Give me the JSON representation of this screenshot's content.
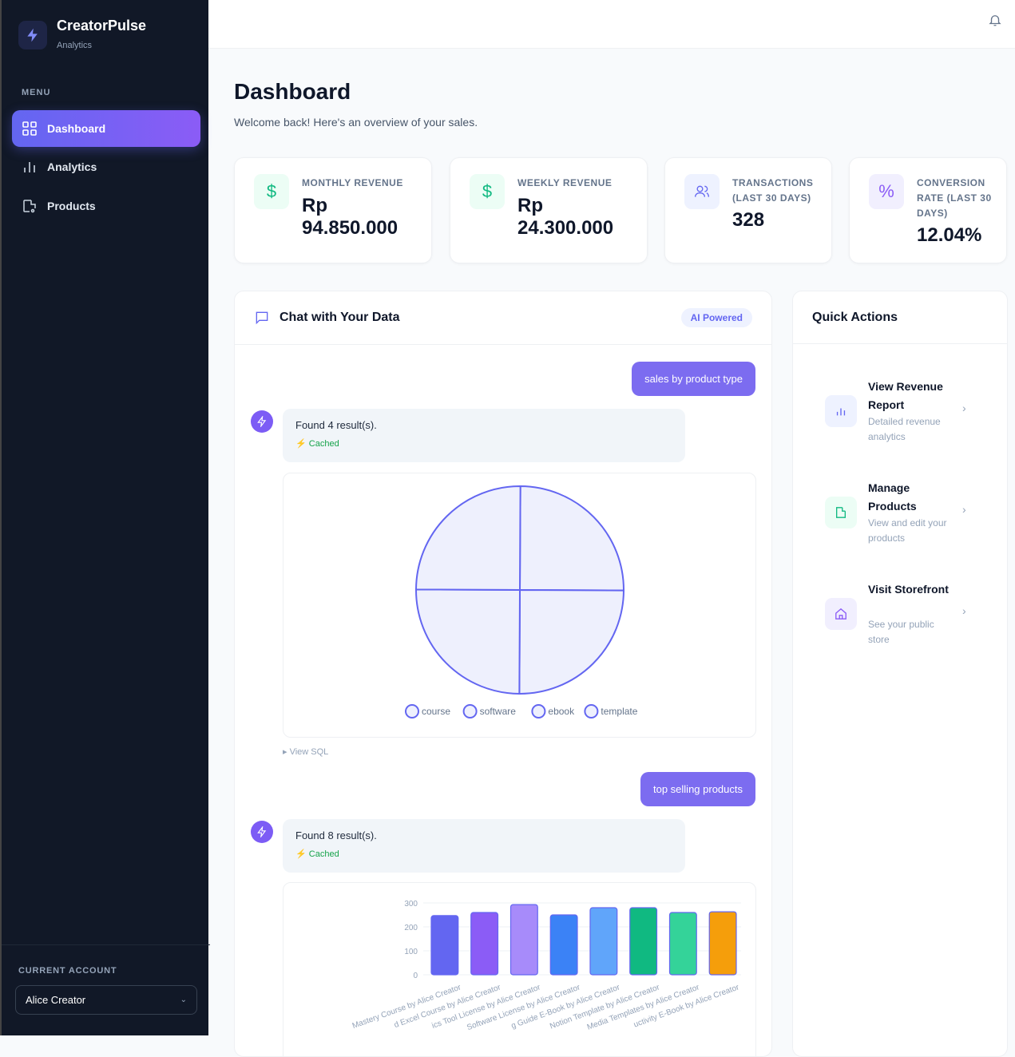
{
  "app": {
    "name": "CreatorPulse",
    "subtitle": "Analytics"
  },
  "sidebar": {
    "menu_label": "MENU",
    "items": [
      {
        "label": "Dashboard",
        "icon": "grid-icon",
        "active": true
      },
      {
        "label": "Analytics",
        "icon": "bar-chart-icon"
      },
      {
        "label": "Products",
        "icon": "package-icon"
      }
    ],
    "account_label": "CURRENT ACCOUNT",
    "account": "Alice Creator"
  },
  "header": {
    "title": "Dashboard",
    "welcome": "Welcome back! Here's an overview of your sales."
  },
  "stats": [
    {
      "label": "MONTHLY REVENUE",
      "value_line1": "Rp",
      "value_line2": "94.850.000",
      "icon": "dollar-icon",
      "color": "#10b981"
    },
    {
      "label": "WEEKLY REVENUE",
      "value_line1": "Rp",
      "value_line2": "24.300.000",
      "icon": "dollar-icon",
      "color": "#10b981"
    },
    {
      "label": "TRANSACTIONS (LAST 30 DAYS)",
      "value": "328",
      "icon": "users-icon",
      "color": "#6366f1"
    },
    {
      "label": "CONVERSION RATE (LAST 30 DAYS)",
      "value": "12.04%",
      "icon": "percent-icon",
      "color": "#8b5cf6"
    }
  ],
  "chat": {
    "title": "Chat with Your Data",
    "badge": "AI Powered",
    "messages": [
      {
        "user": "sales by product type",
        "result": "Found 4 result(s).",
        "cached": "Cached",
        "view_sql": "View SQL"
      },
      {
        "user": "top selling products",
        "result": "Found 8 result(s).",
        "cached": "Cached"
      }
    ]
  },
  "chart_data": [
    {
      "type": "pie",
      "categories": [
        "course",
        "software",
        "ebook",
        "template"
      ],
      "values": [
        25,
        25,
        25,
        25
      ],
      "color": "#6366f1",
      "fill": "#eef0fd"
    },
    {
      "type": "bar",
      "categories": [
        "Mastery Course by Alice Creator",
        "d Excel Course by Alice Creator",
        "ics Tool License by Alice Creator",
        "Software License by Alice Creator",
        "g Guide E-Book by Alice Creator",
        "Notion Template by Alice Creator",
        "Media Templates by Alice Creator",
        "uctivity E-Book by Alice Creator"
      ],
      "values": [
        247,
        260,
        293,
        250,
        280,
        280,
        260,
        263
      ],
      "ylim": [
        0,
        300
      ],
      "yticks": [
        0,
        100,
        200,
        300
      ],
      "grid": true,
      "colors": [
        "#6366f1",
        "#8b5cf6",
        "#a78bfa",
        "#3b82f6",
        "#60a5fa",
        "#10b981",
        "#34d399",
        "#f59e0b"
      ]
    }
  ],
  "quick_actions": {
    "title": "Quick Actions",
    "items": [
      {
        "title": "View Revenue Report",
        "desc": "Detailed revenue analytics",
        "icon": "bar-chart-icon",
        "color": "#6366f1",
        "bg": "#eef2ff"
      },
      {
        "title": "Manage Products",
        "desc": "View and edit your products",
        "icon": "package-icon",
        "color": "#10b981",
        "bg": "#ecfdf5"
      },
      {
        "title": "Visit Storefront",
        "desc": "See your public store",
        "icon": "home-icon",
        "color": "#8b5cf6",
        "bg": "#f1effe"
      }
    ]
  }
}
